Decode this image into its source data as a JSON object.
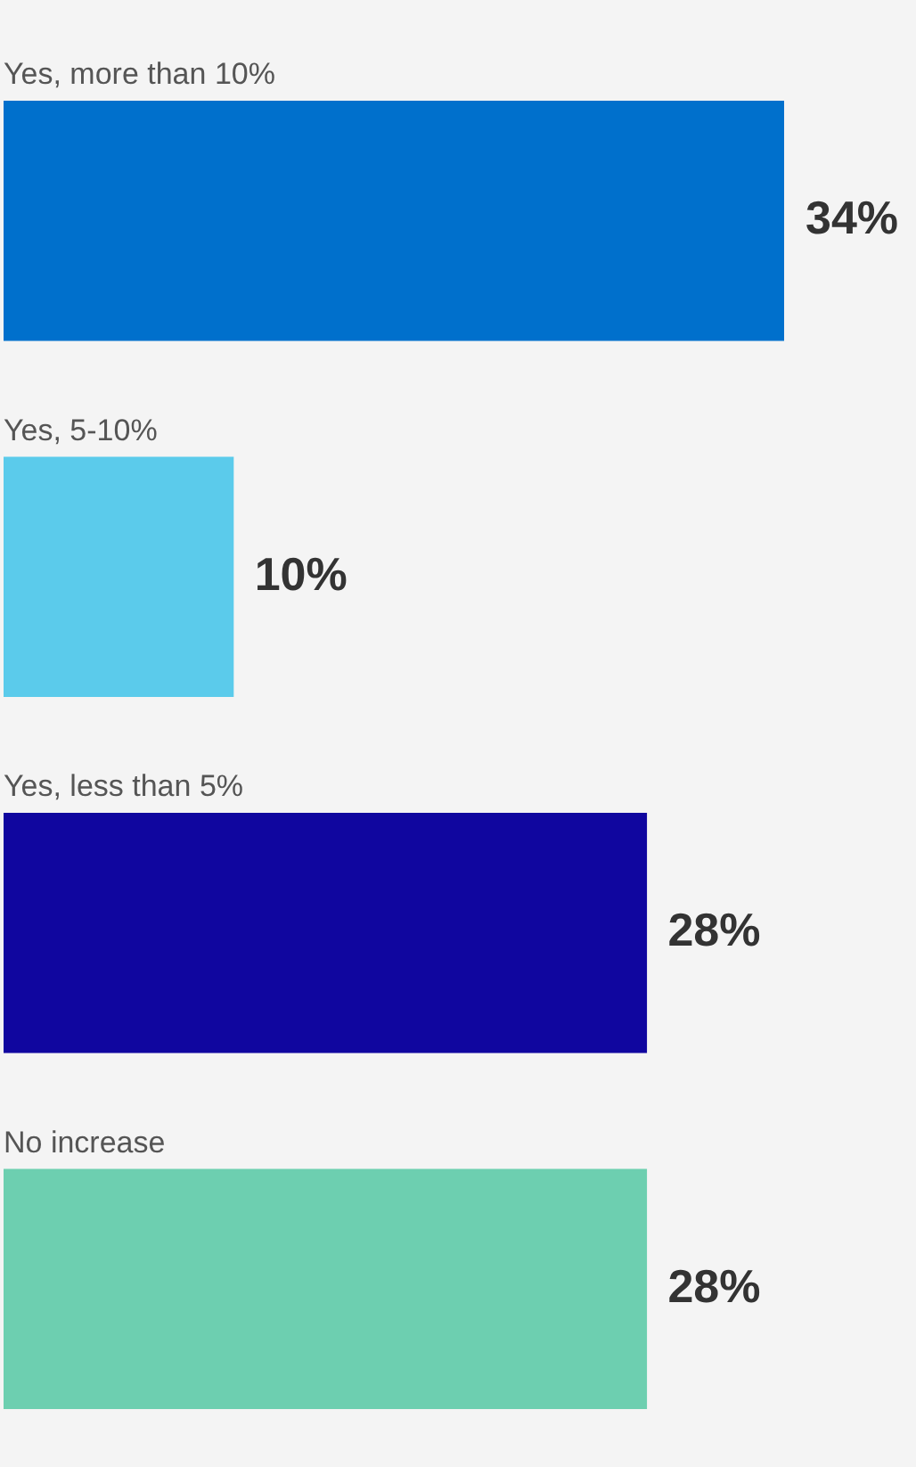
{
  "chart_data": {
    "type": "bar",
    "orientation": "horizontal",
    "categories": [
      "Yes, more than 10%",
      "Yes, 5-10%",
      "Yes, less than 5%",
      "No increase"
    ],
    "values": [
      34,
      10,
      28,
      28
    ],
    "colors": [
      "#0070cc",
      "#5bcbeb",
      "#10069f",
      "#6dcfb0"
    ],
    "value_labels": [
      "34%",
      "10%",
      "28%",
      "28%"
    ],
    "legend": false
  }
}
